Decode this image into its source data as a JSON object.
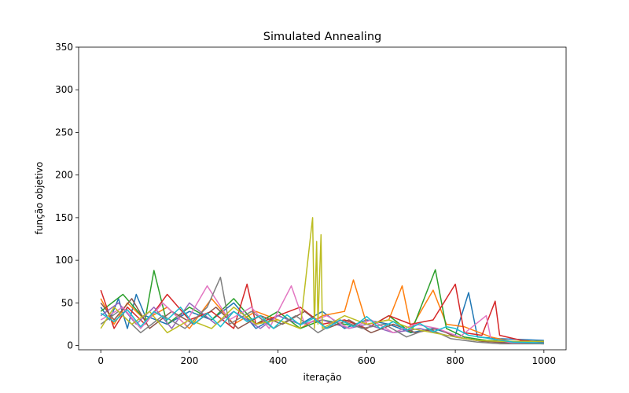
{
  "chart_data": {
    "type": "line",
    "title": "Simulated Annealing",
    "xlabel": "iteração",
    "ylabel": "função objetivo",
    "xlim": [
      -50,
      1050
    ],
    "ylim": [
      -5,
      350
    ],
    "xticks": [
      0,
      200,
      400,
      600,
      800,
      1000
    ],
    "yticks": [
      0,
      50,
      100,
      150,
      200,
      250,
      300,
      350
    ],
    "grid": false,
    "legend": "none",
    "series": [
      {
        "color": "#1f77b4",
        "values": [
          [
            0,
            45
          ],
          [
            20,
            30
          ],
          [
            40,
            55
          ],
          [
            60,
            20
          ],
          [
            80,
            60
          ],
          [
            100,
            35
          ],
          [
            150,
            25
          ],
          [
            200,
            40
          ],
          [
            250,
            30
          ],
          [
            300,
            50
          ],
          [
            350,
            20
          ],
          [
            400,
            35
          ],
          [
            450,
            25
          ],
          [
            500,
            40
          ],
          [
            550,
            20
          ],
          [
            600,
            30
          ],
          [
            650,
            25
          ],
          [
            700,
            15
          ],
          [
            750,
            20
          ],
          [
            800,
            12
          ],
          [
            830,
            62
          ],
          [
            850,
            10
          ],
          [
            900,
            8
          ],
          [
            950,
            7
          ],
          [
            1000,
            6
          ]
        ]
      },
      {
        "color": "#ff7f0e",
        "values": [
          [
            0,
            55
          ],
          [
            30,
            25
          ],
          [
            60,
            50
          ],
          [
            100,
            30
          ],
          [
            150,
            45
          ],
          [
            200,
            20
          ],
          [
            250,
            55
          ],
          [
            300,
            25
          ],
          [
            350,
            40
          ],
          [
            400,
            30
          ],
          [
            450,
            20
          ],
          [
            500,
            35
          ],
          [
            550,
            40
          ],
          [
            570,
            77
          ],
          [
            600,
            25
          ],
          [
            650,
            30
          ],
          [
            680,
            70
          ],
          [
            700,
            20
          ],
          [
            750,
            65
          ],
          [
            780,
            25
          ],
          [
            820,
            22
          ],
          [
            880,
            10
          ],
          [
            930,
            4
          ],
          [
            1000,
            3
          ]
        ]
      },
      {
        "color": "#2ca02c",
        "values": [
          [
            0,
            40
          ],
          [
            50,
            60
          ],
          [
            100,
            30
          ],
          [
            120,
            88
          ],
          [
            150,
            25
          ],
          [
            200,
            45
          ],
          [
            250,
            30
          ],
          [
            300,
            55
          ],
          [
            350,
            25
          ],
          [
            400,
            40
          ],
          [
            450,
            20
          ],
          [
            500,
            30
          ],
          [
            550,
            25
          ],
          [
            600,
            20
          ],
          [
            650,
            35
          ],
          [
            700,
            15
          ],
          [
            755,
            89
          ],
          [
            780,
            20
          ],
          [
            820,
            10
          ],
          [
            870,
            6
          ],
          [
            930,
            5
          ],
          [
            1000,
            5
          ]
        ]
      },
      {
        "color": "#d62728",
        "values": [
          [
            0,
            65
          ],
          [
            30,
            20
          ],
          [
            60,
            45
          ],
          [
            100,
            25
          ],
          [
            150,
            60
          ],
          [
            200,
            30
          ],
          [
            250,
            40
          ],
          [
            300,
            20
          ],
          [
            330,
            72
          ],
          [
            350,
            25
          ],
          [
            400,
            35
          ],
          [
            450,
            45
          ],
          [
            500,
            25
          ],
          [
            550,
            30
          ],
          [
            600,
            20
          ],
          [
            650,
            35
          ],
          [
            700,
            25
          ],
          [
            750,
            30
          ],
          [
            800,
            72
          ],
          [
            820,
            15
          ],
          [
            860,
            12
          ],
          [
            890,
            52
          ],
          [
            900,
            12
          ],
          [
            950,
            6
          ],
          [
            1000,
            4
          ]
        ]
      },
      {
        "color": "#9467bd",
        "values": [
          [
            0,
            35
          ],
          [
            40,
            50
          ],
          [
            80,
            25
          ],
          [
            120,
            45
          ],
          [
            160,
            20
          ],
          [
            200,
            50
          ],
          [
            260,
            25
          ],
          [
            300,
            40
          ],
          [
            360,
            20
          ],
          [
            400,
            35
          ],
          [
            450,
            25
          ],
          [
            500,
            30
          ],
          [
            560,
            20
          ],
          [
            600,
            25
          ],
          [
            660,
            15
          ],
          [
            720,
            20
          ],
          [
            780,
            12
          ],
          [
            850,
            6
          ],
          [
            900,
            4
          ],
          [
            1000,
            3
          ]
        ]
      },
      {
        "color": "#8c564b",
        "values": [
          [
            0,
            50
          ],
          [
            30,
            30
          ],
          [
            70,
            55
          ],
          [
            110,
            20
          ],
          [
            160,
            40
          ],
          [
            210,
            25
          ],
          [
            260,
            45
          ],
          [
            310,
            20
          ],
          [
            360,
            35
          ],
          [
            410,
            25
          ],
          [
            460,
            40
          ],
          [
            510,
            20
          ],
          [
            560,
            30
          ],
          [
            610,
            15
          ],
          [
            660,
            25
          ],
          [
            710,
            15
          ],
          [
            760,
            20
          ],
          [
            800,
            10
          ],
          [
            860,
            5
          ],
          [
            920,
            3
          ],
          [
            1000,
            2
          ]
        ]
      },
      {
        "color": "#e377c2",
        "values": [
          [
            0,
            30
          ],
          [
            50,
            45
          ],
          [
            90,
            20
          ],
          [
            140,
            50
          ],
          [
            190,
            25
          ],
          [
            240,
            70
          ],
          [
            290,
            30
          ],
          [
            340,
            45
          ],
          [
            380,
            20
          ],
          [
            430,
            70
          ],
          [
            460,
            25
          ],
          [
            510,
            35
          ],
          [
            560,
            20
          ],
          [
            610,
            30
          ],
          [
            660,
            15
          ],
          [
            710,
            25
          ],
          [
            760,
            20
          ],
          [
            810,
            10
          ],
          [
            870,
            35
          ],
          [
            880,
            8
          ],
          [
            930,
            3
          ],
          [
            1000,
            2
          ]
        ]
      },
      {
        "color": "#7f7f7f",
        "values": [
          [
            0,
            25
          ],
          [
            40,
            40
          ],
          [
            90,
            15
          ],
          [
            140,
            35
          ],
          [
            190,
            20
          ],
          [
            240,
            45
          ],
          [
            270,
            80
          ],
          [
            290,
            25
          ],
          [
            340,
            40
          ],
          [
            390,
            20
          ],
          [
            440,
            35
          ],
          [
            490,
            15
          ],
          [
            540,
            30
          ],
          [
            590,
            20
          ],
          [
            640,
            25
          ],
          [
            690,
            10
          ],
          [
            740,
            20
          ],
          [
            790,
            8
          ],
          [
            850,
            4
          ],
          [
            900,
            2
          ],
          [
            1000,
            2
          ]
        ]
      },
      {
        "color": "#bcbd22",
        "values": [
          [
            0,
            20
          ],
          [
            30,
            45
          ],
          [
            70,
            25
          ],
          [
            110,
            40
          ],
          [
            150,
            15
          ],
          [
            200,
            30
          ],
          [
            250,
            20
          ],
          [
            300,
            45
          ],
          [
            350,
            25
          ],
          [
            400,
            30
          ],
          [
            450,
            20
          ],
          [
            478,
            150
          ],
          [
            482,
            20
          ],
          [
            487,
            122
          ],
          [
            490,
            25
          ],
          [
            497,
            130
          ],
          [
            500,
            20
          ],
          [
            550,
            35
          ],
          [
            600,
            25
          ],
          [
            650,
            30
          ],
          [
            700,
            20
          ],
          [
            750,
            15
          ],
          [
            800,
            10
          ],
          [
            850,
            6
          ],
          [
            900,
            5
          ],
          [
            1000,
            5
          ]
        ]
      },
      {
        "color": "#17becf",
        "values": [
          [
            0,
            38
          ],
          [
            30,
            28
          ],
          [
            60,
            42
          ],
          [
            90,
            22
          ],
          [
            120,
            40
          ],
          [
            150,
            30
          ],
          [
            180,
            45
          ],
          [
            210,
            25
          ],
          [
            240,
            38
          ],
          [
            270,
            22
          ],
          [
            300,
            40
          ],
          [
            330,
            28
          ],
          [
            360,
            35
          ],
          [
            390,
            20
          ],
          [
            420,
            36
          ],
          [
            450,
            24
          ],
          [
            480,
            32
          ],
          [
            510,
            20
          ],
          [
            540,
            30
          ],
          [
            570,
            22
          ],
          [
            600,
            34
          ],
          [
            630,
            20
          ],
          [
            660,
            28
          ],
          [
            690,
            18
          ],
          [
            720,
            26
          ],
          [
            750,
            16
          ],
          [
            780,
            22
          ],
          [
            800,
            20
          ],
          [
            830,
            12
          ],
          [
            880,
            8
          ],
          [
            930,
            4
          ],
          [
            1000,
            3
          ]
        ]
      }
    ]
  }
}
